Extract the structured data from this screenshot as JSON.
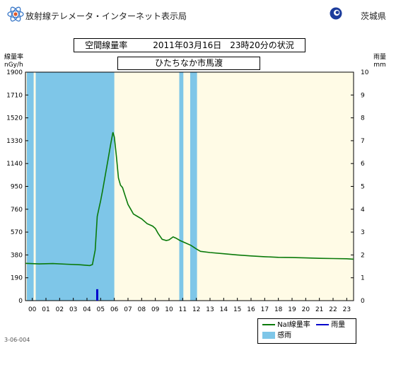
{
  "header": {
    "title": "放射線テレメータ・インターネット表示局",
    "prefecture": "茨城県"
  },
  "chart_data": {
    "type": "line",
    "title": "空間線量率　　　2011年03月16日　23時20分の状況",
    "subtitle": "ひたちなか市馬渡",
    "left_axis_label": [
      "線量率",
      "nGy/h"
    ],
    "right_axis_label": [
      "雨量",
      "mm"
    ],
    "x_ticks": [
      "00",
      "01",
      "02",
      "03",
      "04",
      "05",
      "06",
      "07",
      "08",
      "09",
      "10",
      "11",
      "12",
      "13",
      "14",
      "15",
      "16",
      "17",
      "18",
      "19",
      "20",
      "21",
      "22",
      "23"
    ],
    "y_ticks": [
      "0",
      "190",
      "380",
      "570",
      "760",
      "950",
      "1140",
      "1330",
      "1520",
      "1710",
      "1900"
    ],
    "y2_ticks": [
      "0",
      "1",
      "2",
      "3",
      "4",
      "5",
      "6",
      "7",
      "8",
      "9",
      "10"
    ],
    "ylim": [
      0,
      1900
    ],
    "y2lim": [
      0,
      10
    ],
    "xlim": [
      -0.5,
      23.5
    ],
    "series": [
      {
        "name": "NaI線量率",
        "color": "#0a7a0a",
        "type": "line",
        "points": [
          [
            -0.5,
            310
          ],
          [
            0.5,
            305
          ],
          [
            1.5,
            308
          ],
          [
            2.5,
            303
          ],
          [
            3.5,
            298
          ],
          [
            4.2,
            292
          ],
          [
            4.4,
            300
          ],
          [
            4.6,
            420
          ],
          [
            4.75,
            700
          ],
          [
            4.9,
            780
          ],
          [
            5.0,
            830
          ],
          [
            5.15,
            920
          ],
          [
            5.35,
            1050
          ],
          [
            5.55,
            1180
          ],
          [
            5.75,
            1310
          ],
          [
            5.9,
            1400
          ],
          [
            6.0,
            1360
          ],
          [
            6.15,
            1200
          ],
          [
            6.3,
            1020
          ],
          [
            6.45,
            960
          ],
          [
            6.6,
            940
          ],
          [
            6.8,
            870
          ],
          [
            7.0,
            800
          ],
          [
            7.2,
            760
          ],
          [
            7.4,
            720
          ],
          [
            7.7,
            700
          ],
          [
            8.0,
            680
          ],
          [
            8.4,
            640
          ],
          [
            8.8,
            620
          ],
          [
            9.0,
            600
          ],
          [
            9.2,
            560
          ],
          [
            9.5,
            510
          ],
          [
            9.8,
            500
          ],
          [
            10.0,
            505
          ],
          [
            10.3,
            530
          ],
          [
            10.5,
            520
          ],
          [
            10.8,
            500
          ],
          [
            11.2,
            480
          ],
          [
            11.6,
            460
          ],
          [
            12.0,
            430
          ],
          [
            12.3,
            410
          ],
          [
            13.0,
            400
          ],
          [
            14.0,
            390
          ],
          [
            15.0,
            380
          ],
          [
            16.0,
            372
          ],
          [
            17.0,
            365
          ],
          [
            18.0,
            360
          ],
          [
            19.0,
            358
          ],
          [
            20.0,
            355
          ],
          [
            21.0,
            352
          ],
          [
            22.0,
            350
          ],
          [
            23.0,
            348
          ],
          [
            23.5,
            345
          ]
        ]
      },
      {
        "name": "雨量",
        "color": "#0000cc",
        "type": "bar",
        "points": [
          [
            4.75,
            0.5
          ]
        ]
      }
    ],
    "rain_periods": {
      "name": "感雨",
      "color": "#7ec6e8",
      "intervals": [
        [
          -0.4,
          0.1
        ],
        [
          0.25,
          6.0
        ],
        [
          10.75,
          11.05
        ],
        [
          11.55,
          12.05
        ]
      ]
    }
  },
  "legend": {
    "line_label": "NaI線量率",
    "rain_label": "雨量",
    "sense_label": "感雨"
  },
  "footer": {
    "code": "3-06-004"
  }
}
